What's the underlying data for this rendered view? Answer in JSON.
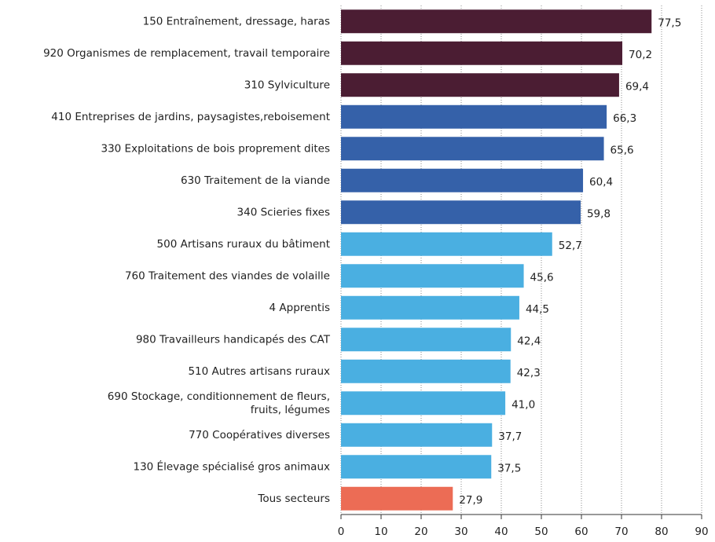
{
  "chart_data": {
    "type": "barh",
    "categories": [
      "150 Entraînement, dressage, haras",
      "920 Organismes de remplacement, travail temporaire",
      "310 Sylviculture",
      "410 Entreprises de jardins, paysagistes,reboisement",
      "330 Exploitations de bois proprement dites",
      "630 Traitement de la viande",
      "340 Scieries fixes",
      "500 Artisans ruraux du bâtiment",
      "760 Traitement des viandes de volaille",
      "4 Apprentis",
      "980 Travailleurs handicapés des CAT",
      "510 Autres artisans ruraux",
      "690 Stockage, conditionnement de fleurs,\nfruits, légumes",
      "770 Coopératives diverses",
      "130 Élevage spécialisé gros animaux",
      "Tous secteurs"
    ],
    "values": [
      77.5,
      70.2,
      69.4,
      66.3,
      65.6,
      60.4,
      59.8,
      52.7,
      45.6,
      44.5,
      42.4,
      42.3,
      41.0,
      37.7,
      37.5,
      27.9
    ],
    "value_labels": [
      "77,5",
      "70,2",
      "69,4",
      "66,3",
      "65,6",
      "60,4",
      "59,8",
      "52,7",
      "45,6",
      "44,5",
      "42,4",
      "42,3",
      "41,0",
      "37,7",
      "37,5",
      "27,9"
    ],
    "colors": [
      "#4b1d33",
      "#4b1d33",
      "#4b1d33",
      "#3561a9",
      "#3561a9",
      "#3561a9",
      "#3561a9",
      "#4aafe1",
      "#4aafe1",
      "#4aafe1",
      "#4aafe1",
      "#4aafe1",
      "#4aafe1",
      "#4aafe1",
      "#4aafe1",
      "#ec6c55"
    ],
    "value_label_colors": [
      "#2b3a80",
      "#2b3a80",
      "#2b3a80",
      "#2b3a80",
      "#2b3a80",
      "#2b3a80",
      "#2b3a80",
      "#2b3a80",
      "#2b3a80",
      "#2b3a80",
      "#2b3a80",
      "#2b3a80",
      "#2b3a80",
      "#2b3a80",
      "#2b3a80",
      "#ec6c55"
    ],
    "xlim": [
      0,
      90
    ],
    "xticks": [
      0,
      10,
      20,
      30,
      40,
      50,
      60,
      70,
      80,
      90
    ],
    "grid": true
  }
}
